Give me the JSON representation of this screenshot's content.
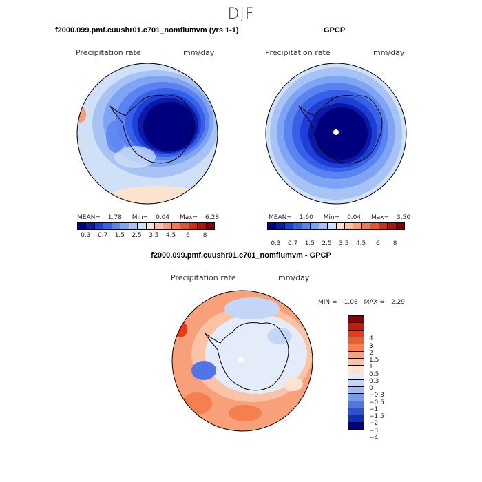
{
  "season": "DJF",
  "panels": {
    "model": {
      "title": "f2000.099.pmf.cuushr01.c701_nomflumvm (yrs 1-1)",
      "variable": "Precipitation rate",
      "units": "mm/day",
      "stats": {
        "mean_label": "MEAN=",
        "mean": "1.78",
        "min_label": "Min=",
        "min": "0.04",
        "max_label": "Max=",
        "max": "6.28"
      }
    },
    "obs": {
      "title": "GPCP",
      "variable": "Precipitation rate",
      "units": "mm/day",
      "stats": {
        "mean_label": "MEAN=",
        "mean": "1.60",
        "min_label": "Min=",
        "min": "0.04",
        "max_label": "Max=",
        "max": "3.50"
      }
    },
    "diff": {
      "title": "f2000.099.pmf.cuushr01.c701_nomflumvm - GPCP",
      "variable": "Precipitation rate",
      "units": "mm/day",
      "stats": {
        "min_label": "MIN =",
        "min": "-1.08",
        "max_label": "MAX =",
        "max": "2.29"
      }
    }
  },
  "precip_colorbar": {
    "colors": [
      "#00007f",
      "#0a1aa8",
      "#1f3fd4",
      "#3760e8",
      "#5a82f0",
      "#7ea4f4",
      "#a7c3f6",
      "#cfe0f7",
      "#fbe3d0",
      "#f8c3a4",
      "#f4a07a",
      "#ee7a52",
      "#e2532e",
      "#c9301a",
      "#a8150e",
      "#7f0000"
    ],
    "tick_labels": [
      "0.3",
      "0.7",
      "1.5",
      "2.5",
      "3.5",
      "4.5",
      "6",
      "8"
    ]
  },
  "diff_colorbar": {
    "colors": [
      "#8b0000",
      "#c41a0c",
      "#e83a14",
      "#f25a2a",
      "#f57f4f",
      "#f8a07a",
      "#fbc3a6",
      "#fde3d2",
      "#e4ecfa",
      "#c3d6f7",
      "#9dbaf2",
      "#7699ec",
      "#4f76e4",
      "#2b52d6",
      "#0f2fb5",
      "#00007f"
    ],
    "tick_labels": [
      "4",
      "3",
      "2",
      "1.5",
      "1",
      "0.5",
      "0.3",
      "0",
      "-0.3",
      "-0.5",
      "-1",
      "-1.5",
      "-2",
      "-3",
      "-4"
    ]
  }
}
